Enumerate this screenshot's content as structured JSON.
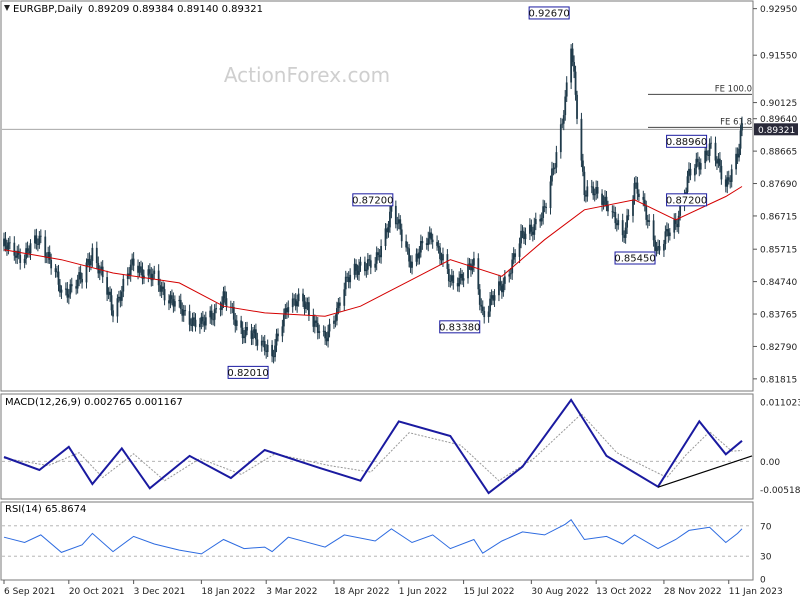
{
  "header": {
    "symbol": "EURGBP,Daily",
    "ohlc": "0.89209 0.89384 0.89140 0.89321"
  },
  "watermark": "ActionForex.com",
  "colors": {
    "candle": "#1f3a4a",
    "ema": "#d40000",
    "macd": "#1a1aa0",
    "signal": "#999999",
    "rsi": "#2d6be0",
    "label_border": "#1a1aa0",
    "price_tag_bg": "#2a2a3a"
  },
  "chart_data": [
    {
      "type": "candlestick",
      "title": "EURGBP,Daily",
      "ylim": [
        0.8148,
        0.9315
      ],
      "y_ticks": [
        "0.92950",
        "0.91550",
        "0.90125",
        "0.89640",
        "0.88665",
        "0.87690",
        "0.86715",
        "0.85715",
        "0.84740",
        "0.83765",
        "0.82790",
        "0.81815"
      ],
      "x_ticks": [
        "6 Sep 2021",
        "20 Oct 2021",
        "3 Dec 2021",
        "18 Jan 2022",
        "3 Mar 2022",
        "18 Apr 2022",
        "1 Jun 2022",
        "15 Jul 2022",
        "30 Aug 2022",
        "13 Oct 2022",
        "28 Nov 2022",
        "11 Jan 2023"
      ],
      "x_range": [
        "2021-09-06",
        "2023-01-20"
      ],
      "current_price": "0.89321",
      "levels": [
        {
          "label": "FE 100.0",
          "value": 0.9037
        },
        {
          "label": "FE 61.8",
          "value": 0.8938
        }
      ],
      "price_labels": [
        {
          "label": "0.92670",
          "date": "2022-09-26",
          "value": 0.9267
        },
        {
          "label": "0.87200",
          "date": "2022-05-30",
          "value": 0.872
        },
        {
          "label": "0.88960",
          "date": "2022-12-29",
          "value": 0.8896
        },
        {
          "label": "0.87200",
          "date": "2022-12-29",
          "value": 0.872
        },
        {
          "label": "0.85450",
          "date": "2022-11-24",
          "value": 0.8545
        },
        {
          "label": "0.83380",
          "date": "2022-07-28",
          "value": 0.8338
        },
        {
          "label": "0.82010",
          "date": "2022-03-07",
          "value": 0.8201
        }
      ],
      "close_path": [
        [
          "2021-09-06",
          0.858
        ],
        [
          "2021-09-20",
          0.855
        ],
        [
          "2021-10-01",
          0.861
        ],
        [
          "2021-10-15",
          0.844
        ],
        [
          "2021-10-29",
          0.848
        ],
        [
          "2021-11-05",
          0.857
        ],
        [
          "2021-11-19",
          0.839
        ],
        [
          "2021-12-03",
          0.853
        ],
        [
          "2021-12-17",
          0.848
        ],
        [
          "2022-01-03",
          0.839
        ],
        [
          "2022-01-18",
          0.834
        ],
        [
          "2022-02-02",
          0.842
        ],
        [
          "2022-02-16",
          0.832
        ],
        [
          "2022-03-02",
          0.829
        ],
        [
          "2022-03-07",
          0.824
        ],
        [
          "2022-03-18",
          0.842
        ],
        [
          "2022-03-31",
          0.84
        ],
        [
          "2022-04-12",
          0.829
        ],
        [
          "2022-04-25",
          0.846
        ],
        [
          "2022-05-06",
          0.853
        ],
        [
          "2022-05-16",
          0.852
        ],
        [
          "2022-05-27",
          0.869
        ],
        [
          "2022-06-10",
          0.853
        ],
        [
          "2022-06-24",
          0.862
        ],
        [
          "2022-07-06",
          0.847
        ],
        [
          "2022-07-22",
          0.852
        ],
        [
          "2022-07-28",
          0.838
        ],
        [
          "2022-08-10",
          0.846
        ],
        [
          "2022-08-24",
          0.861
        ],
        [
          "2022-09-08",
          0.868
        ],
        [
          "2022-09-22",
          0.901
        ],
        [
          "2022-09-26",
          0.918
        ],
        [
          "2022-10-05",
          0.875
        ],
        [
          "2022-10-20",
          0.872
        ],
        [
          "2022-10-31",
          0.86
        ],
        [
          "2022-11-08",
          0.877
        ],
        [
          "2022-11-24",
          0.857
        ],
        [
          "2022-12-06",
          0.865
        ],
        [
          "2022-12-15",
          0.879
        ],
        [
          "2022-12-29",
          0.888
        ],
        [
          "2023-01-09",
          0.877
        ],
        [
          "2023-01-17",
          0.885
        ],
        [
          "2023-01-20",
          0.8932
        ]
      ],
      "ema_path": [
        [
          "2021-09-06",
          0.857
        ],
        [
          "2021-10-15",
          0.854
        ],
        [
          "2021-11-19",
          0.85
        ],
        [
          "2022-01-03",
          0.847
        ],
        [
          "2022-02-02",
          0.84
        ],
        [
          "2022-03-02",
          0.838
        ],
        [
          "2022-04-12",
          0.837
        ],
        [
          "2022-05-06",
          0.84
        ],
        [
          "2022-06-10",
          0.848
        ],
        [
          "2022-07-06",
          0.854
        ],
        [
          "2022-08-10",
          0.849
        ],
        [
          "2022-09-08",
          0.86
        ],
        [
          "2022-10-05",
          0.869
        ],
        [
          "2022-11-08",
          0.872
        ],
        [
          "2022-12-06",
          0.866
        ],
        [
          "2023-01-09",
          0.873
        ],
        [
          "2023-01-20",
          0.876
        ]
      ]
    },
    {
      "type": "line",
      "title": "MACD(12,26,9) 0.002765 0.001167",
      "ylim": [
        -0.0068,
        0.0123
      ],
      "y_ticks": [
        "0.011023",
        "0.00",
        "-0.005182"
      ],
      "series": [
        {
          "name": "MACD",
          "points": [
            [
              "2021-09-06",
              0.0008
            ],
            [
              "2021-09-30",
              -0.0016
            ],
            [
              "2021-10-20",
              0.0027
            ],
            [
              "2021-11-05",
              -0.0042
            ],
            [
              "2021-11-25",
              0.0024
            ],
            [
              "2021-12-14",
              -0.005
            ],
            [
              "2022-01-10",
              0.001
            ],
            [
              "2022-02-07",
              -0.0031
            ],
            [
              "2022-03-02",
              0.0021
            ],
            [
              "2022-04-08",
              -0.0012
            ],
            [
              "2022-05-06",
              -0.0036
            ],
            [
              "2022-06-01",
              0.0074
            ],
            [
              "2022-07-06",
              0.0047
            ],
            [
              "2022-08-01",
              -0.0059
            ],
            [
              "2022-08-24",
              -0.001
            ],
            [
              "2022-09-26",
              0.0114
            ],
            [
              "2022-10-20",
              0.001
            ],
            [
              "2022-11-24",
              -0.0047
            ],
            [
              "2022-12-06",
              0.0005
            ],
            [
              "2022-12-22",
              0.0074
            ],
            [
              "2023-01-09",
              0.0013
            ],
            [
              "2023-01-20",
              0.0038
            ]
          ]
        },
        {
          "name": "Signal",
          "points": [
            [
              "2021-09-06",
              0.0006
            ],
            [
              "2021-10-06",
              -0.0008
            ],
            [
              "2021-10-27",
              0.0016
            ],
            [
              "2021-11-12",
              -0.003
            ],
            [
              "2021-12-03",
              0.0014
            ],
            [
              "2021-12-24",
              -0.0036
            ],
            [
              "2022-01-17",
              0.0005
            ],
            [
              "2022-02-14",
              -0.0024
            ],
            [
              "2022-03-09",
              0.0014
            ],
            [
              "2022-04-15",
              -0.0008
            ],
            [
              "2022-05-13",
              -0.002
            ],
            [
              "2022-06-08",
              0.0053
            ],
            [
              "2022-07-13",
              0.003
            ],
            [
              "2022-08-08",
              -0.0036
            ],
            [
              "2022-09-01",
              0.0006
            ],
            [
              "2022-10-03",
              0.0088
            ],
            [
              "2022-10-27",
              0.0016
            ],
            [
              "2022-11-30",
              -0.003
            ],
            [
              "2022-12-13",
              0.0012
            ],
            [
              "2022-12-29",
              0.0055
            ],
            [
              "2023-01-13",
              0.0019
            ],
            [
              "2023-01-20",
              0.002
            ]
          ]
        }
      ],
      "trendline": [
        [
          "2022-11-24",
          -0.0048
        ],
        [
          "2023-01-20",
          0.001
        ]
      ]
    },
    {
      "type": "line",
      "title": "RSI(14) 65.8674",
      "ylim": [
        0,
        100
      ],
      "y_ticks": [
        "70",
        "30",
        "0"
      ],
      "levels": [
        70,
        30
      ],
      "series": [
        {
          "name": "RSI",
          "points": [
            [
              "2021-09-06",
              55
            ],
            [
              "2021-09-20",
              48
            ],
            [
              "2021-10-01",
              58
            ],
            [
              "2021-10-15",
              35
            ],
            [
              "2021-10-29",
              45
            ],
            [
              "2021-11-05",
              60
            ],
            [
              "2021-11-19",
              36
            ],
            [
              "2021-12-03",
              56
            ],
            [
              "2021-12-17",
              46
            ],
            [
              "2022-01-03",
              38
            ],
            [
              "2022-01-18",
              33
            ],
            [
              "2022-02-02",
              52
            ],
            [
              "2022-02-16",
              40
            ],
            [
              "2022-03-02",
              42
            ],
            [
              "2022-03-07",
              36
            ],
            [
              "2022-03-18",
              55
            ],
            [
              "2022-04-12",
              42
            ],
            [
              "2022-04-25",
              58
            ],
            [
              "2022-05-16",
              50
            ],
            [
              "2022-05-27",
              66
            ],
            [
              "2022-06-10",
              48
            ],
            [
              "2022-06-24",
              58
            ],
            [
              "2022-07-06",
              40
            ],
            [
              "2022-07-22",
              52
            ],
            [
              "2022-07-28",
              34
            ],
            [
              "2022-08-10",
              50
            ],
            [
              "2022-08-24",
              62
            ],
            [
              "2022-09-08",
              58
            ],
            [
              "2022-09-22",
              72
            ],
            [
              "2022-09-26",
              78
            ],
            [
              "2022-10-05",
              52
            ],
            [
              "2022-10-20",
              56
            ],
            [
              "2022-10-31",
              46
            ],
            [
              "2022-11-08",
              58
            ],
            [
              "2022-11-24",
              40
            ],
            [
              "2022-12-06",
              52
            ],
            [
              "2022-12-15",
              64
            ],
            [
              "2022-12-29",
              68
            ],
            [
              "2023-01-09",
              48
            ],
            [
              "2023-01-17",
              60
            ],
            [
              "2023-01-20",
              66
            ]
          ]
        }
      ]
    }
  ]
}
